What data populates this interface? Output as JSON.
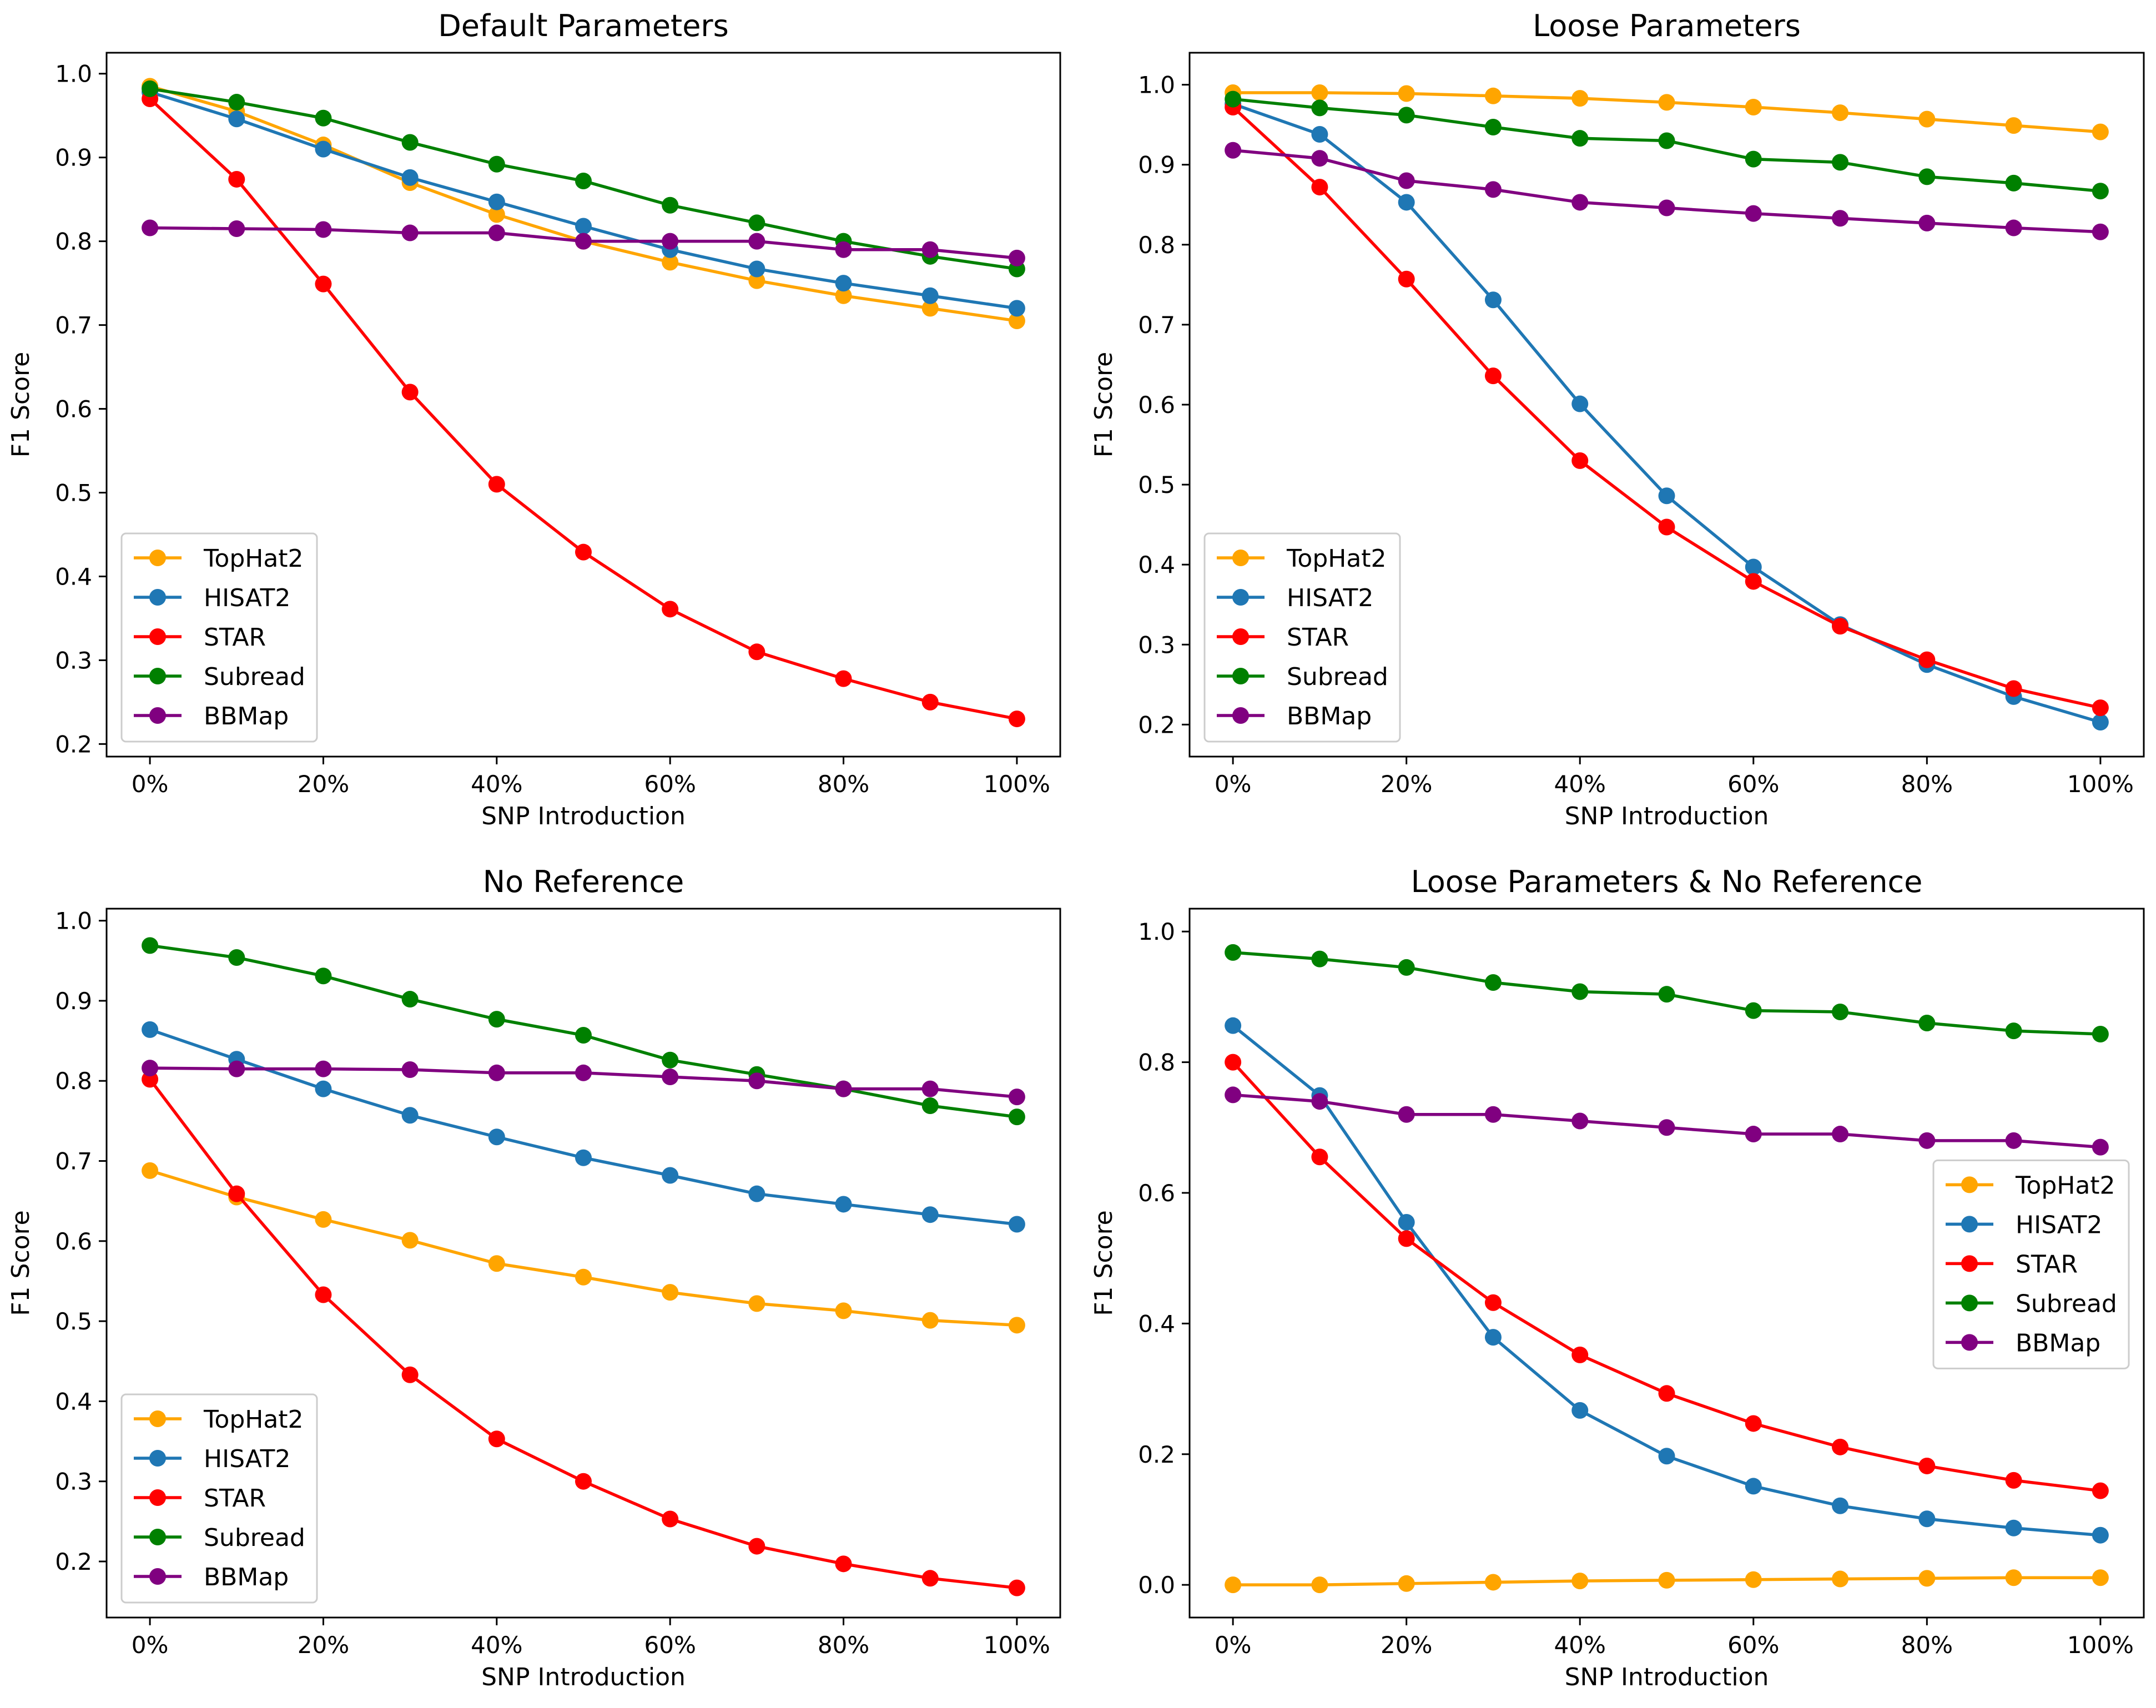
{
  "colors": {
    "TopHat2": "#FFA500",
    "HISAT2": "#1F77B4",
    "STAR": "#FF0000",
    "Subread": "#008000",
    "BBMap": "#800080"
  },
  "chart_data": [
    {
      "type": "line",
      "title": "Default Parameters",
      "xlabel": "SNP Introduction",
      "ylabel": "F1 Score",
      "x": [
        0,
        10,
        20,
        30,
        40,
        50,
        60,
        70,
        80,
        90,
        100
      ],
      "xtick_values": [
        0,
        20,
        40,
        60,
        80,
        100
      ],
      "xtick_labels": [
        "0%",
        "20%",
        "40%",
        "60%",
        "80%",
        "100%"
      ],
      "ylim": [
        0.185,
        1.025
      ],
      "yticks": [
        0.2,
        0.3,
        0.4,
        0.5,
        0.6,
        0.7,
        0.8,
        0.9,
        1.0
      ],
      "ytick_labels": [
        "0.2",
        "0.3",
        "0.4",
        "0.5",
        "0.6",
        "0.7",
        "0.8",
        "0.9",
        "1.0"
      ],
      "legend_loc": "lower-left",
      "grid": false,
      "series": [
        {
          "name": "TopHat2",
          "values": [
            0.985,
            0.955,
            0.915,
            0.87,
            0.832,
            0.8,
            0.775,
            0.753,
            0.735,
            0.72,
            0.705
          ]
        },
        {
          "name": "HISAT2",
          "values": [
            0.978,
            0.946,
            0.91,
            0.876,
            0.847,
            0.818,
            0.79,
            0.767,
            0.75,
            0.735,
            0.72
          ]
        },
        {
          "name": "STAR",
          "values": [
            0.97,
            0.874,
            0.749,
            0.62,
            0.51,
            0.429,
            0.361,
            0.31,
            0.278,
            0.25,
            0.23
          ]
        },
        {
          "name": "Subread",
          "values": [
            0.982,
            0.966,
            0.947,
            0.918,
            0.892,
            0.872,
            0.843,
            0.822,
            0.8,
            0.782,
            0.767
          ]
        },
        {
          "name": "BBMap",
          "values": [
            0.816,
            0.815,
            0.814,
            0.81,
            0.81,
            0.8,
            0.8,
            0.8,
            0.79,
            0.79,
            0.78
          ]
        }
      ]
    },
    {
      "type": "line",
      "title": "Loose Parameters",
      "xlabel": "SNP Introduction",
      "ylabel": "F1 Score",
      "x": [
        0,
        10,
        20,
        30,
        40,
        50,
        60,
        70,
        80,
        90,
        100
      ],
      "xtick_values": [
        0,
        20,
        40,
        60,
        80,
        100
      ],
      "xtick_labels": [
        "0%",
        "20%",
        "40%",
        "60%",
        "80%",
        "100%"
      ],
      "ylim": [
        0.16,
        1.04
      ],
      "yticks": [
        0.2,
        0.3,
        0.4,
        0.5,
        0.6,
        0.7,
        0.8,
        0.9,
        1.0
      ],
      "ytick_labels": [
        "0.2",
        "0.3",
        "0.4",
        "0.5",
        "0.6",
        "0.7",
        "0.8",
        "0.9",
        "1.0"
      ],
      "legend_loc": "lower-left",
      "grid": false,
      "series": [
        {
          "name": "TopHat2",
          "values": [
            0.99,
            0.99,
            0.989,
            0.986,
            0.983,
            0.978,
            0.972,
            0.965,
            0.957,
            0.949,
            0.941
          ]
        },
        {
          "name": "HISAT2",
          "values": [
            0.976,
            0.938,
            0.853,
            0.731,
            0.601,
            0.486,
            0.397,
            0.325,
            0.275,
            0.235,
            0.203
          ]
        },
        {
          "name": "STAR",
          "values": [
            0.972,
            0.872,
            0.757,
            0.636,
            0.53,
            0.447,
            0.379,
            0.323,
            0.281,
            0.245,
            0.221
          ]
        },
        {
          "name": "Subread",
          "values": [
            0.982,
            0.971,
            0.962,
            0.947,
            0.933,
            0.93,
            0.907,
            0.903,
            0.885,
            0.877,
            0.867
          ]
        },
        {
          "name": "BBMap",
          "values": [
            0.918,
            0.908,
            0.88,
            0.869,
            0.853,
            0.846,
            0.839,
            0.833,
            0.827,
            0.821,
            0.816
          ]
        }
      ]
    },
    {
      "type": "line",
      "title": "No Reference",
      "xlabel": "SNP Introduction",
      "ylabel": "F1 Score",
      "x": [
        0,
        10,
        20,
        30,
        40,
        50,
        60,
        70,
        80,
        90,
        100
      ],
      "xtick_values": [
        0,
        20,
        40,
        60,
        80,
        100
      ],
      "xtick_labels": [
        "0%",
        "20%",
        "40%",
        "60%",
        "80%",
        "100%"
      ],
      "ylim": [
        0.13,
        1.015
      ],
      "yticks": [
        0.2,
        0.3,
        0.4,
        0.5,
        0.6,
        0.7,
        0.8,
        0.9,
        1.0
      ],
      "ytick_labels": [
        "0.2",
        "0.3",
        "0.4",
        "0.5",
        "0.6",
        "0.7",
        "0.8",
        "0.9",
        "1.0"
      ],
      "legend_loc": "lower-left",
      "grid": false,
      "series": [
        {
          "name": "TopHat2",
          "values": [
            0.688,
            0.655,
            0.627,
            0.601,
            0.572,
            0.555,
            0.536,
            0.522,
            0.513,
            0.501,
            0.495
          ]
        },
        {
          "name": "HISAT2",
          "values": [
            0.864,
            0.827,
            0.79,
            0.757,
            0.73,
            0.704,
            0.682,
            0.659,
            0.646,
            0.633,
            0.621
          ]
        },
        {
          "name": "STAR",
          "values": [
            0.802,
            0.659,
            0.533,
            0.433,
            0.353,
            0.3,
            0.253,
            0.219,
            0.197,
            0.179,
            0.167
          ]
        },
        {
          "name": "Subread",
          "values": [
            0.969,
            0.954,
            0.931,
            0.902,
            0.877,
            0.857,
            0.826,
            0.808,
            0.79,
            0.769,
            0.755
          ]
        },
        {
          "name": "BBMap",
          "values": [
            0.816,
            0.815,
            0.815,
            0.814,
            0.81,
            0.81,
            0.805,
            0.8,
            0.79,
            0.79,
            0.78
          ]
        }
      ]
    },
    {
      "type": "line",
      "title": "Loose Parameters & No Reference",
      "xlabel": "SNP Introduction",
      "ylabel": "F1 Score",
      "x": [
        0,
        10,
        20,
        30,
        40,
        50,
        60,
        70,
        80,
        90,
        100
      ],
      "xtick_values": [
        0,
        20,
        40,
        60,
        80,
        100
      ],
      "xtick_labels": [
        "0%",
        "20%",
        "40%",
        "60%",
        "80%",
        "100%"
      ],
      "ylim": [
        -0.05,
        1.035
      ],
      "yticks": [
        0.0,
        0.2,
        0.4,
        0.6,
        0.8,
        1.0
      ],
      "ytick_labels": [
        "0.0",
        "0.2",
        "0.4",
        "0.6",
        "0.8",
        "1.0"
      ],
      "legend_loc": "center-right",
      "grid": false,
      "series": [
        {
          "name": "TopHat2",
          "values": [
            0.0,
            0.0,
            0.002,
            0.004,
            0.006,
            0.007,
            0.008,
            0.009,
            0.01,
            0.011,
            0.011
          ]
        },
        {
          "name": "HISAT2",
          "values": [
            0.856,
            0.749,
            0.555,
            0.379,
            0.267,
            0.197,
            0.151,
            0.121,
            0.101,
            0.087,
            0.076
          ]
        },
        {
          "name": "STAR",
          "values": [
            0.8,
            0.655,
            0.53,
            0.432,
            0.352,
            0.293,
            0.247,
            0.211,
            0.182,
            0.16,
            0.144
          ]
        },
        {
          "name": "Subread",
          "values": [
            0.968,
            0.958,
            0.945,
            0.922,
            0.908,
            0.904,
            0.879,
            0.877,
            0.86,
            0.848,
            0.843
          ]
        },
        {
          "name": "BBMap",
          "values": [
            0.75,
            0.74,
            0.72,
            0.72,
            0.71,
            0.7,
            0.69,
            0.69,
            0.68,
            0.68,
            0.67
          ]
        }
      ]
    }
  ]
}
